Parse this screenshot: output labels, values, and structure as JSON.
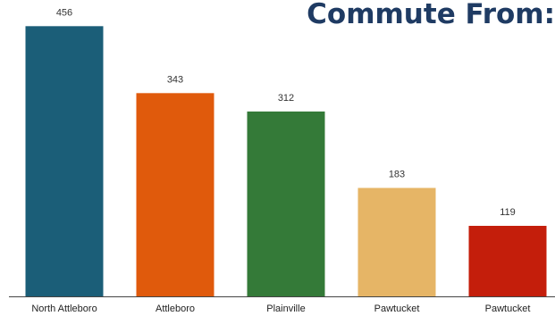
{
  "title": "Commute From:",
  "colors": {
    "title": "#1f3b63",
    "axis": "#444444"
  },
  "chart_data": {
    "type": "bar",
    "title": "Commute From:",
    "categories": [
      "North Attleboro",
      "Attleboro",
      "Plainville",
      "Pawtucket",
      "Pawtucket"
    ],
    "values": [
      456,
      343,
      312,
      183,
      119
    ],
    "colors": [
      "#1b5e78",
      "#e05a0c",
      "#347a38",
      "#e6b566",
      "#c41e0b"
    ],
    "ylim": [
      0,
      464
    ],
    "xlabel": "",
    "ylabel": "",
    "grid": false,
    "legend": "none"
  }
}
